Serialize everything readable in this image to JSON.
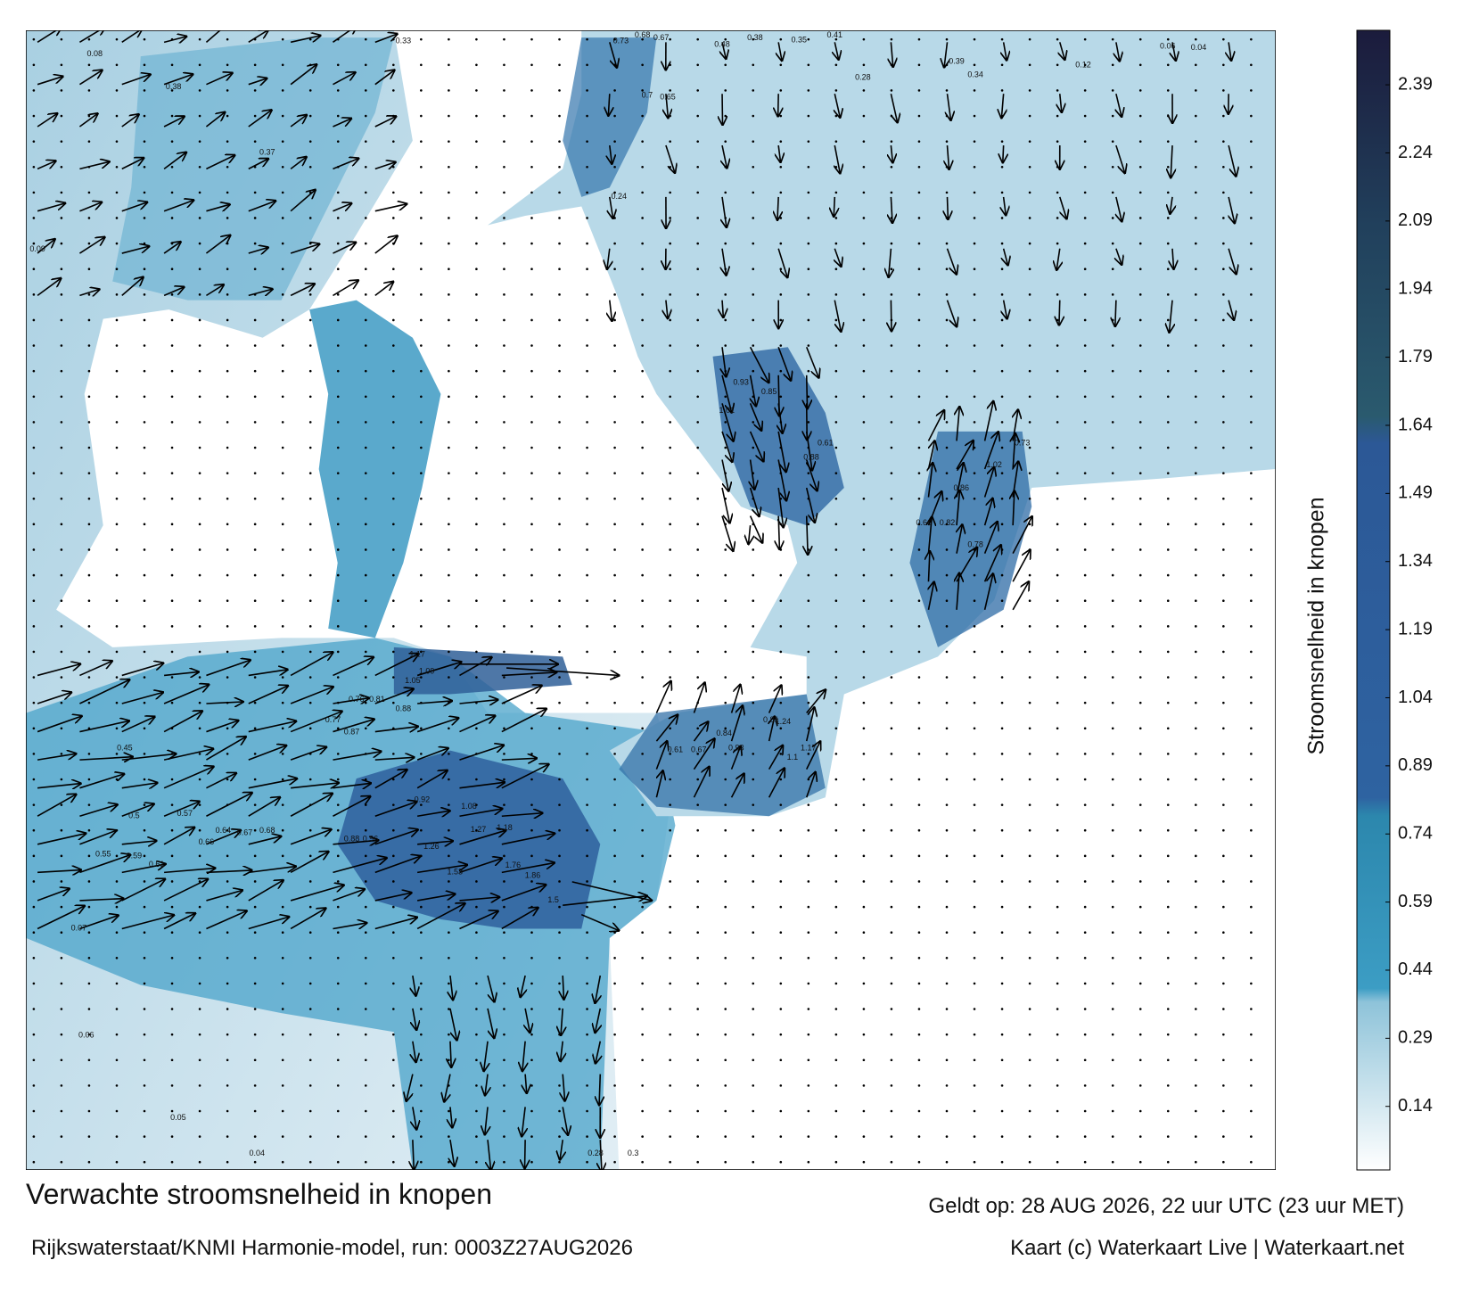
{
  "map": {
    "title": "Verwachte stroomsnelheid in knopen",
    "subtitle": "Rijkswaterstaat/KNMI Harmonie-model, run: 0003Z27AUG2026",
    "valid_time": "Geldt op: 28 AUG 2026, 22 uur UTC (23 uur MET)",
    "credit": "Kaart (c) Waterkaart Live | Waterkaart.net",
    "speed_labels": [
      1.17,
      1.09,
      1.05,
      0.88,
      0.87,
      0.77,
      0.76,
      0.81,
      1.53,
      1.76,
      1.86,
      1.5,
      1.27,
      1.18,
      1.26,
      1.08,
      0.92,
      0.96,
      0.88,
      0.85,
      0.93,
      1.01,
      0.88,
      0.61,
      1.02,
      0.73,
      0.86,
      0.82,
      0.78,
      0.66,
      1.24,
      1.17,
      1.1,
      0.93,
      0.84,
      0.81,
      0.61,
      0.67,
      0.65,
      0.7,
      0.73,
      0.68,
      0.67,
      0.48,
      0.38,
      0.35,
      0.41,
      0.28,
      0.39,
      0.34,
      0.12,
      0.06,
      0.04,
      0.45,
      0.5,
      0.57,
      0.64,
      0.67,
      0.68,
      0.66,
      0.61,
      0.59,
      0.55,
      0.33,
      0.38,
      0.37,
      0.24,
      0.3,
      0.28,
      0.05,
      0.04,
      0.07,
      0.06,
      0.09,
      0.08
    ]
  },
  "colorbar": {
    "label": "Stroomsnelheid in knopen",
    "lim": [
      0,
      2.51
    ],
    "ticks": [
      0.14,
      0.29,
      0.44,
      0.59,
      0.74,
      0.89,
      1.04,
      1.19,
      1.34,
      1.49,
      1.64,
      1.79,
      1.94,
      2.09,
      2.24,
      2.39
    ],
    "colorscale": [
      [
        0,
        "#ffffff"
      ],
      [
        0.37,
        "#8ec3d9"
      ],
      [
        0.4,
        "#3c9dc4"
      ],
      [
        0.78,
        "#2c87ad"
      ],
      [
        0.82,
        "#2e63a1"
      ],
      [
        1.6,
        "#2c5896"
      ],
      [
        1.66,
        "#2a5a6e"
      ],
      [
        2.08,
        "#21405c"
      ],
      [
        2.51,
        "#1b1b3c"
      ]
    ]
  }
}
